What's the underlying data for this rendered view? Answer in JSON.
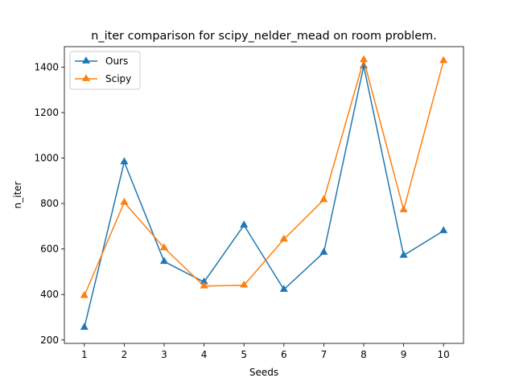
{
  "chart_data": {
    "type": "line",
    "title": "n_iter comparison for scipy_nelder_mead on room problem.",
    "xlabel": "Seeds",
    "ylabel": "n_iter",
    "x": [
      1,
      2,
      3,
      4,
      5,
      6,
      7,
      8,
      9,
      10
    ],
    "xlim": [
      0.5,
      10.5
    ],
    "ylim": [
      185,
      1490
    ],
    "yticks": [
      200,
      400,
      600,
      800,
      1000,
      1200,
      1400
    ],
    "grid": false,
    "legend_position": "upper-left",
    "marker": "triangle",
    "series": [
      {
        "name": "Ours",
        "color": "#1f77b4",
        "values": [
          255,
          983,
          545,
          455,
          705,
          422,
          585,
          1405,
          572,
          680
        ]
      },
      {
        "name": "Scipy",
        "color": "#ff7f0e",
        "values": [
          395,
          805,
          605,
          437,
          441,
          643,
          817,
          1432,
          772,
          1428
        ]
      }
    ]
  }
}
